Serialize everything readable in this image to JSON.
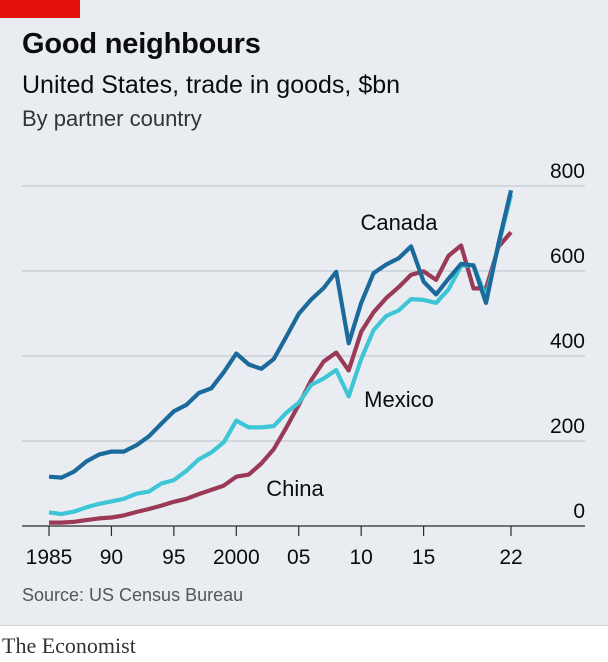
{
  "header": {
    "title": "Good neighbours",
    "subtitle": "United States, trade in goods, $bn",
    "note": "By partner country"
  },
  "footer": {
    "source": "Source: US Census Bureau",
    "brand": "The Economist"
  },
  "colors": {
    "background": "#e9edf1",
    "accent_red": "#e3120b",
    "canada": "#1b6a9b",
    "mexico": "#3ec6d6",
    "china": "#9b3a57",
    "gridline": "#b7c2cc",
    "axis_text": "#0c0c0c"
  },
  "chart_data": {
    "type": "line",
    "title": "Good neighbours",
    "subtitle": "United States, trade in goods, $bn",
    "ylim": [
      0,
      800
    ],
    "yticks": [
      0,
      200,
      400,
      600,
      800
    ],
    "ytick_labels": [
      "0",
      "200",
      "400",
      "600",
      "800"
    ],
    "xlim": [
      1985,
      2022
    ],
    "xticks": [
      1985,
      1990,
      1995,
      2000,
      2005,
      2010,
      2015,
      2022
    ],
    "xtick_labels": [
      "1985",
      "90",
      "95",
      "2000",
      "05",
      "10",
      "15",
      "22"
    ],
    "grid": true,
    "y_axis_side": "right",
    "x": [
      1985,
      1986,
      1987,
      1988,
      1989,
      1990,
      1991,
      1992,
      1993,
      1994,
      1995,
      1996,
      1997,
      1998,
      1999,
      2000,
      2001,
      2002,
      2003,
      2004,
      2005,
      2006,
      2007,
      2008,
      2009,
      2010,
      2011,
      2012,
      2013,
      2014,
      2015,
      2016,
      2017,
      2018,
      2019,
      2020,
      2021,
      2022
    ],
    "series": [
      {
        "name": "Canada",
        "label_position": "above line near 2013",
        "values": [
          116,
          114,
          128,
          152,
          168,
          175,
          175,
          190,
          211,
          241,
          270,
          285,
          313,
          324,
          362,
          406,
          380,
          370,
          393,
          445,
          499,
          533,
          560,
          598,
          430,
          525,
          595,
          615,
          630,
          658,
          575,
          545,
          582,
          617,
          613,
          525,
          665,
          790
        ]
      },
      {
        "name": "Mexico",
        "label_position": "right of line near 2010",
        "values": [
          32,
          28,
          34,
          44,
          52,
          58,
          64,
          76,
          81,
          100,
          108,
          130,
          157,
          173,
          197,
          248,
          232,
          232,
          235,
          266,
          290,
          332,
          347,
          367,
          305,
          393,
          461,
          494,
          507,
          534,
          532,
          525,
          557,
          612,
          614,
          538,
          661,
          779
        ]
      },
      {
        "name": "China",
        "label_position": "below line near 2003",
        "values": [
          8,
          8,
          10,
          14,
          18,
          20,
          25,
          33,
          40,
          48,
          57,
          64,
          75,
          85,
          95,
          116,
          121,
          147,
          181,
          231,
          285,
          343,
          387,
          408,
          366,
          457,
          503,
          536,
          562,
          591,
          599,
          579,
          636,
          660,
          559,
          559,
          657,
          691
        ]
      }
    ]
  }
}
